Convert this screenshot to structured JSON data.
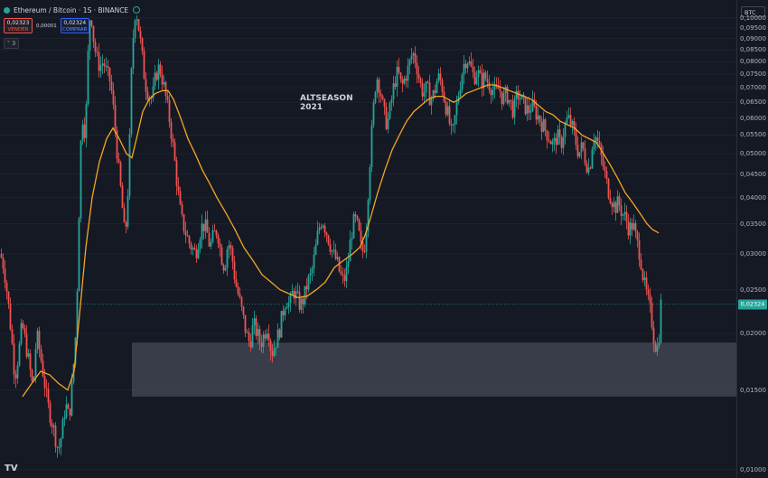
{
  "header": {
    "symbol": "Ethereum / Bitcoin · 1S · BINANCE",
    "sell_price": "0,02323",
    "sell_label": "VENDER",
    "spread": "0,00001",
    "buy_price": "0,02324",
    "buy_label": "COMPRAR",
    "indicators_count": "3"
  },
  "axis": {
    "currency": "BTC",
    "current_price_label": "0,02324"
  },
  "annotation": {
    "line1": "ALTSEASON",
    "line2": "2021"
  },
  "logo": "TV",
  "colors": {
    "up": "#26a69a",
    "down": "#ef5350",
    "ma": "#f5a623",
    "support_zone": "#454a55",
    "background": "#151924"
  },
  "chart_data": {
    "type": "candlestick",
    "y_scale": "log",
    "ylim": [
      0.0098,
      0.107
    ],
    "y_ticks": [
      "0,10000",
      "0,09500",
      "0,09000",
      "0,08500",
      "0,08000",
      "0,07500",
      "0,07000",
      "0,06500",
      "0,06000",
      "0,05500",
      "0,05000",
      "0,04500",
      "0,04000",
      "0,03500",
      "0,03000",
      "0,02500",
      "0,02000",
      "0,01500",
      "0,01000"
    ],
    "y_tick_values": [
      0.1,
      0.095,
      0.09,
      0.085,
      0.08,
      0.075,
      0.07,
      0.065,
      0.06,
      0.055,
      0.05,
      0.045,
      0.04,
      0.035,
      0.03,
      0.025,
      0.02,
      0.015,
      0.01
    ],
    "last_price": 0.02324,
    "support_zone": [
      0.0145,
      0.0191
    ],
    "close_path": [
      [
        0,
        0.03
      ],
      [
        4,
        0.028
      ],
      [
        8,
        0.024
      ],
      [
        12,
        0.02
      ],
      [
        16,
        0.016
      ],
      [
        20,
        0.018
      ],
      [
        24,
        0.021
      ],
      [
        28,
        0.019
      ],
      [
        32,
        0.017
      ],
      [
        36,
        0.015
      ],
      [
        40,
        0.02
      ],
      [
        44,
        0.018
      ],
      [
        48,
        0.016
      ],
      [
        52,
        0.014
      ],
      [
        56,
        0.013
      ],
      [
        60,
        0.012
      ],
      [
        64,
        0.011
      ],
      [
        68,
        0.012
      ],
      [
        72,
        0.014
      ],
      [
        76,
        0.013
      ],
      [
        80,
        0.016
      ],
      [
        84,
        0.021
      ],
      [
        88,
        0.045
      ],
      [
        90,
        0.062
      ],
      [
        94,
        0.055
      ],
      [
        98,
        0.095
      ],
      [
        100,
        0.105
      ],
      [
        103,
        0.09
      ],
      [
        106,
        0.082
      ],
      [
        110,
        0.078
      ],
      [
        114,
        0.08
      ],
      [
        118,
        0.075
      ],
      [
        122,
        0.072
      ],
      [
        126,
        0.06
      ],
      [
        130,
        0.048
      ],
      [
        134,
        0.04
      ],
      [
        138,
        0.032
      ],
      [
        142,
        0.045
      ],
      [
        145,
        0.075
      ],
      [
        148,
        0.1
      ],
      [
        150,
        0.105
      ],
      [
        153,
        0.095
      ],
      [
        156,
        0.085
      ],
      [
        160,
        0.072
      ],
      [
        164,
        0.068
      ],
      [
        168,
        0.066
      ],
      [
        172,
        0.075
      ],
      [
        176,
        0.078
      ],
      [
        180,
        0.072
      ],
      [
        184,
        0.065
      ],
      [
        188,
        0.058
      ],
      [
        192,
        0.05
      ],
      [
        196,
        0.042
      ],
      [
        200,
        0.036
      ],
      [
        204,
        0.034
      ],
      [
        208,
        0.032
      ],
      [
        212,
        0.031
      ],
      [
        216,
        0.03
      ],
      [
        220,
        0.033
      ],
      [
        224,
        0.035
      ],
      [
        228,
        0.034
      ],
      [
        232,
        0.031
      ],
      [
        236,
        0.033
      ],
      [
        240,
        0.034
      ],
      [
        244,
        0.03
      ],
      [
        248,
        0.028
      ],
      [
        252,
        0.032
      ],
      [
        256,
        0.03
      ],
      [
        260,
        0.026
      ],
      [
        264,
        0.024
      ],
      [
        268,
        0.022
      ],
      [
        272,
        0.02
      ],
      [
        276,
        0.019
      ],
      [
        280,
        0.021
      ],
      [
        284,
        0.02
      ],
      [
        288,
        0.019
      ],
      [
        292,
        0.02
      ],
      [
        296,
        0.021
      ],
      [
        300,
        0.018
      ],
      [
        304,
        0.019
      ],
      [
        308,
        0.02
      ],
      [
        312,
        0.022
      ],
      [
        316,
        0.024
      ],
      [
        320,
        0.023
      ],
      [
        324,
        0.025
      ],
      [
        328,
        0.024
      ],
      [
        332,
        0.023
      ],
      [
        336,
        0.024
      ],
      [
        340,
        0.026
      ],
      [
        344,
        0.027
      ],
      [
        348,
        0.03
      ],
      [
        352,
        0.034
      ],
      [
        356,
        0.036
      ],
      [
        360,
        0.034
      ],
      [
        364,
        0.032
      ],
      [
        368,
        0.03
      ],
      [
        372,
        0.029
      ],
      [
        376,
        0.027
      ],
      [
        380,
        0.026
      ],
      [
        384,
        0.028
      ],
      [
        388,
        0.033
      ],
      [
        392,
        0.036
      ],
      [
        396,
        0.034
      ],
      [
        400,
        0.03
      ],
      [
        404,
        0.032
      ],
      [
        408,
        0.045
      ],
      [
        412,
        0.06
      ],
      [
        416,
        0.075
      ],
      [
        420,
        0.07
      ],
      [
        424,
        0.062
      ],
      [
        428,
        0.058
      ],
      [
        432,
        0.064
      ],
      [
        436,
        0.072
      ],
      [
        440,
        0.076
      ],
      [
        444,
        0.07
      ],
      [
        448,
        0.074
      ],
      [
        452,
        0.078
      ],
      [
        456,
        0.084
      ],
      [
        460,
        0.08
      ],
      [
        464,
        0.072
      ],
      [
        468,
        0.068
      ],
      [
        472,
        0.07
      ],
      [
        476,
        0.066
      ],
      [
        480,
        0.068
      ],
      [
        484,
        0.074
      ],
      [
        488,
        0.072
      ],
      [
        492,
        0.065
      ],
      [
        496,
        0.06
      ],
      [
        500,
        0.054
      ],
      [
        504,
        0.062
      ],
      [
        508,
        0.07
      ],
      [
        512,
        0.078
      ],
      [
        516,
        0.082
      ],
      [
        520,
        0.078
      ],
      [
        524,
        0.074
      ],
      [
        528,
        0.076
      ],
      [
        532,
        0.072
      ],
      [
        536,
        0.074
      ],
      [
        540,
        0.072
      ],
      [
        544,
        0.07
      ],
      [
        548,
        0.068
      ],
      [
        552,
        0.07
      ],
      [
        556,
        0.066
      ],
      [
        560,
        0.068
      ],
      [
        564,
        0.065
      ],
      [
        568,
        0.062
      ],
      [
        572,
        0.068
      ],
      [
        576,
        0.066
      ],
      [
        580,
        0.064
      ],
      [
        584,
        0.062
      ],
      [
        588,
        0.064
      ],
      [
        592,
        0.062
      ],
      [
        596,
        0.06
      ],
      [
        600,
        0.058
      ],
      [
        604,
        0.056
      ],
      [
        608,
        0.054
      ],
      [
        612,
        0.052
      ],
      [
        616,
        0.055
      ],
      [
        620,
        0.052
      ],
      [
        624,
        0.057
      ],
      [
        628,
        0.06
      ],
      [
        632,
        0.058
      ],
      [
        636,
        0.054
      ],
      [
        640,
        0.05
      ],
      [
        644,
        0.052
      ],
      [
        648,
        0.048
      ],
      [
        652,
        0.046
      ],
      [
        656,
        0.055
      ],
      [
        660,
        0.054
      ],
      [
        664,
        0.05
      ],
      [
        668,
        0.046
      ],
      [
        672,
        0.042
      ],
      [
        676,
        0.04
      ],
      [
        680,
        0.038
      ],
      [
        684,
        0.039
      ],
      [
        688,
        0.037
      ],
      [
        692,
        0.036
      ],
      [
        696,
        0.034
      ],
      [
        700,
        0.035
      ],
      [
        704,
        0.032
      ],
      [
        708,
        0.03
      ],
      [
        712,
        0.026
      ],
      [
        716,
        0.024
      ],
      [
        720,
        0.022
      ],
      [
        724,
        0.019
      ],
      [
        728,
        0.0185
      ],
      [
        731,
        0.02324
      ]
    ],
    "ma_path": [
      [
        25,
        0.0145
      ],
      [
        35,
        0.0155
      ],
      [
        45,
        0.0165
      ],
      [
        55,
        0.0162
      ],
      [
        65,
        0.0155
      ],
      [
        75,
        0.015
      ],
      [
        82,
        0.0165
      ],
      [
        88,
        0.022
      ],
      [
        95,
        0.031
      ],
      [
        102,
        0.04
      ],
      [
        110,
        0.048
      ],
      [
        118,
        0.054
      ],
      [
        125,
        0.057
      ],
      [
        132,
        0.054
      ],
      [
        140,
        0.05
      ],
      [
        146,
        0.049
      ],
      [
        152,
        0.055
      ],
      [
        158,
        0.062
      ],
      [
        165,
        0.066
      ],
      [
        172,
        0.068
      ],
      [
        180,
        0.069
      ],
      [
        186,
        0.069
      ],
      [
        192,
        0.066
      ],
      [
        200,
        0.06
      ],
      [
        208,
        0.054
      ],
      [
        216,
        0.05
      ],
      [
        224,
        0.046
      ],
      [
        232,
        0.043
      ],
      [
        240,
        0.04
      ],
      [
        250,
        0.037
      ],
      [
        260,
        0.034
      ],
      [
        270,
        0.031
      ],
      [
        280,
        0.029
      ],
      [
        290,
        0.027
      ],
      [
        300,
        0.026
      ],
      [
        310,
        0.025
      ],
      [
        320,
        0.0245
      ],
      [
        330,
        0.024
      ],
      [
        340,
        0.0242
      ],
      [
        350,
        0.025
      ],
      [
        360,
        0.026
      ],
      [
        370,
        0.028
      ],
      [
        380,
        0.029
      ],
      [
        390,
        0.03
      ],
      [
        398,
        0.031
      ],
      [
        404,
        0.033
      ],
      [
        410,
        0.036
      ],
      [
        418,
        0.041
      ],
      [
        426,
        0.046
      ],
      [
        434,
        0.051
      ],
      [
        442,
        0.055
      ],
      [
        450,
        0.059
      ],
      [
        458,
        0.062
      ],
      [
        466,
        0.064
      ],
      [
        474,
        0.066
      ],
      [
        482,
        0.067
      ],
      [
        490,
        0.067
      ],
      [
        496,
        0.066
      ],
      [
        502,
        0.065
      ],
      [
        508,
        0.066
      ],
      [
        516,
        0.068
      ],
      [
        524,
        0.069
      ],
      [
        532,
        0.07
      ],
      [
        540,
        0.071
      ],
      [
        548,
        0.071
      ],
      [
        556,
        0.07
      ],
      [
        564,
        0.069
      ],
      [
        572,
        0.068
      ],
      [
        580,
        0.067
      ],
      [
        588,
        0.066
      ],
      [
        596,
        0.064
      ],
      [
        604,
        0.062
      ],
      [
        612,
        0.061
      ],
      [
        620,
        0.059
      ],
      [
        628,
        0.058
      ],
      [
        636,
        0.057
      ],
      [
        644,
        0.055
      ],
      [
        652,
        0.054
      ],
      [
        660,
        0.053
      ],
      [
        668,
        0.05
      ],
      [
        676,
        0.047
      ],
      [
        684,
        0.044
      ],
      [
        692,
        0.041
      ],
      [
        700,
        0.039
      ],
      [
        708,
        0.037
      ],
      [
        716,
        0.035
      ],
      [
        722,
        0.034
      ],
      [
        729,
        0.0334
      ]
    ]
  }
}
